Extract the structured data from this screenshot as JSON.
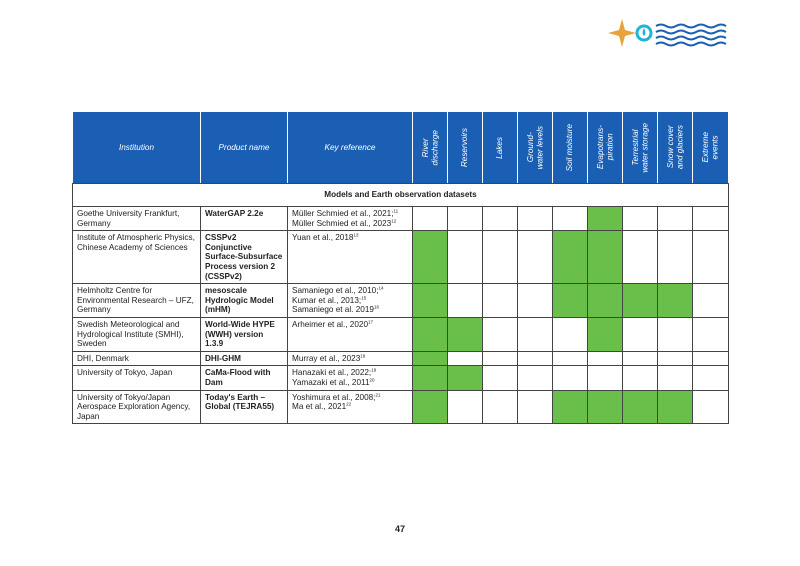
{
  "header": {
    "columns": [
      "Institution",
      "Product name",
      "Key reference"
    ],
    "indicators": [
      [
        "River",
        "discharge"
      ],
      [
        "Reservoirs"
      ],
      [
        "Lakes"
      ],
      [
        "Ground-",
        "water levels"
      ],
      [
        "Soil moisture"
      ],
      [
        "Evapotrans-",
        "piration"
      ],
      [
        "Terrestrial",
        "water storage"
      ],
      [
        "Snow cover",
        "and glaciers"
      ],
      [
        "Extreme",
        "events"
      ]
    ]
  },
  "section": "Models and Earth observation datasets",
  "rows": [
    {
      "institution": "Goethe University Frankfurt, Germany",
      "product": "WaterGAP 2.2e",
      "references": [
        {
          "text": "Müller Schmied et al., 2021;",
          "note": "11"
        },
        {
          "text": "Müller Schmied et al., 2023",
          "note": "12"
        }
      ],
      "coverage": [
        false,
        false,
        false,
        false,
        false,
        true,
        false,
        false,
        false
      ]
    },
    {
      "institution": "Institute of Atmospheric Physics, Chinese Academy of Sciences",
      "product": "CSSPv2 Conjunctive Surface-Subsurface Process version 2 (CSSPv2)",
      "references": [
        {
          "text": "Yuan et al., 2018",
          "note": "13"
        }
      ],
      "coverage": [
        true,
        false,
        false,
        false,
        true,
        true,
        false,
        false,
        false
      ]
    },
    {
      "institution": "Helmholtz Centre for Environmental Research – UFZ, Germany",
      "product": "mesoscale Hydrologic Model (mHM)",
      "references": [
        {
          "text": "Samaniego et al., 2010;",
          "note": "14"
        },
        {
          "text": "Kumar et al., 2013;",
          "note": "15"
        },
        {
          "text": "Samaniego et al. 2019",
          "note": "16"
        }
      ],
      "coverage": [
        true,
        false,
        false,
        false,
        true,
        true,
        true,
        true,
        false
      ]
    },
    {
      "institution": "Swedish Meteorological and Hydrological Institute (SMHI), Sweden",
      "product": "World-Wide HYPE (WWH) version 1.3.9",
      "references": [
        {
          "text": "Arheimer et al., 2020",
          "note": "17"
        }
      ],
      "coverage": [
        true,
        true,
        false,
        false,
        false,
        true,
        false,
        false,
        false
      ]
    },
    {
      "institution": "DHI, Denmark",
      "product": "DHI-GHM",
      "references": [
        {
          "text": "Murray et al., 2023",
          "note": "18"
        }
      ],
      "coverage": [
        true,
        false,
        false,
        false,
        false,
        false,
        false,
        false,
        false
      ]
    },
    {
      "institution": "University of Tokyo, Japan",
      "product": "CaMa-Flood with Dam",
      "references": [
        {
          "text": "Hanazaki et al., 2022;",
          "note": "19"
        },
        {
          "text": "Yamazaki et al., 2011",
          "note": "20"
        }
      ],
      "coverage": [
        true,
        true,
        false,
        false,
        false,
        false,
        false,
        false,
        false
      ]
    },
    {
      "institution": "University of Tokyo/Japan Aerospace Exploration Agency, Japan",
      "product": "Today's Earth – Global (TEJRA55)",
      "references": [
        {
          "text": "Yoshimura et al., 2008;",
          "note": "21"
        },
        {
          "text": "Ma et al., 2021",
          "note": "22"
        }
      ],
      "coverage": [
        true,
        false,
        false,
        false,
        true,
        true,
        true,
        true,
        false
      ]
    }
  ],
  "page_number": "47"
}
